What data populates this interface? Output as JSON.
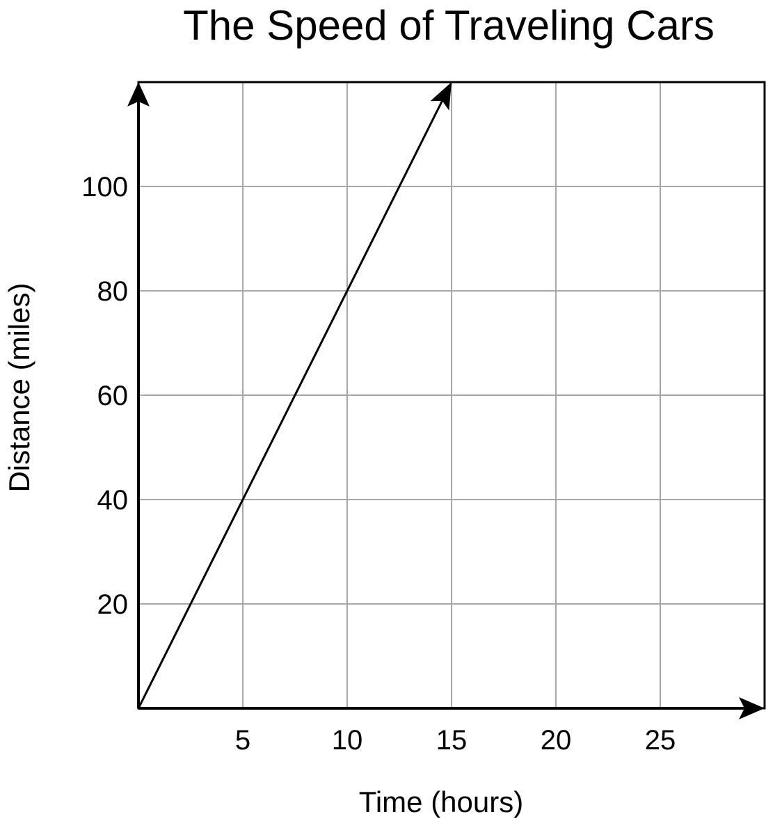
{
  "chart_data": {
    "type": "line",
    "title": "The Speed of Traveling Cars",
    "xlabel": "Time (hours)",
    "ylabel": "Distance (miles)",
    "x_ticks": [
      5,
      10,
      15,
      20,
      25
    ],
    "y_ticks": [
      20,
      40,
      60,
      80,
      100
    ],
    "xlim": [
      0,
      30
    ],
    "ylim": [
      0,
      120
    ],
    "grid": true,
    "series": [
      {
        "x": [
          0,
          15
        ],
        "y": [
          0,
          120
        ],
        "arrow_end": true
      }
    ]
  }
}
